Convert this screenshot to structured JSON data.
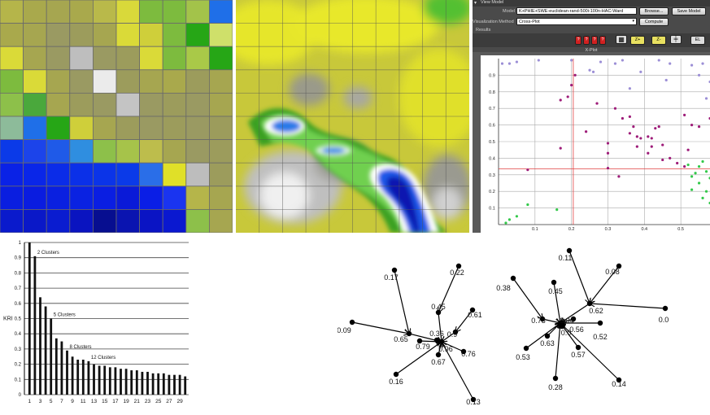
{
  "grid_colors": [
    [
      "#b5b54a",
      "#a9a94c",
      "#a6a650",
      "#a9a94c",
      "#b9b94a",
      "#d9d93a",
      "#7dbb3e",
      "#7dbb3e",
      "#a3c34a",
      "#1f6fe8"
    ],
    [
      "#a9a94c",
      "#a6a650",
      "#9a9a62",
      "#9c9c5c",
      "#a6a650",
      "#dada38",
      "#cfcf3a",
      "#7dbb3e",
      "#26a616",
      "#cfe06a"
    ],
    [
      "#dada38",
      "#a6a650",
      "#9a9a62",
      "#bebebe",
      "#9a9a62",
      "#9c9c5c",
      "#dada38",
      "#7dbb3e",
      "#a9c948",
      "#26a616"
    ],
    [
      "#7dbb3e",
      "#dada38",
      "#a6a650",
      "#9a9a62",
      "#ebebeb",
      "#9c9c5c",
      "#a6a650",
      "#a9a94c",
      "#9c9c5c",
      "#a6a650"
    ],
    [
      "#8dc04a",
      "#4aa83c",
      "#a6a650",
      "#9c9c5c",
      "#9a9a62",
      "#c4c4c4",
      "#9a9a62",
      "#9c9c5c",
      "#9a9a62",
      "#a6a650"
    ],
    [
      "#8dbb9a",
      "#1f6fe8",
      "#26a616",
      "#cfcf3a",
      "#a6a650",
      "#9c9c5c",
      "#9a9a62",
      "#9c9c5c",
      "#9a9a62",
      "#9c9c5c"
    ],
    [
      "#0b3ae8",
      "#1c44ea",
      "#1f5ae8",
      "#2f8ee0",
      "#8dc04a",
      "#a6c34a",
      "#bdbd4c",
      "#a6a650",
      "#9a9a62",
      "#9c9c5c"
    ],
    [
      "#0a22e6",
      "#0a26e8",
      "#0b2ce8",
      "#0b30e8",
      "#0b34e8",
      "#0b3ae8",
      "#2a6ee8",
      "#e0e028",
      "#bdbdbd",
      "#9c9c5c"
    ],
    [
      "#0a1ee0",
      "#0a1ce0",
      "#0a20e0",
      "#0a22e2",
      "#0a1ee2",
      "#0a1ad8",
      "#0a1ee6",
      "#1a34f0",
      "#b5b54a",
      "#a6a650"
    ],
    [
      "#0a1acc",
      "#0a18c8",
      "#0a1cd0",
      "#0a14c0",
      "#070e90",
      "#0a14b0",
      "#0a14c4",
      "#0a18d0",
      "#8dc04a",
      "#a6a650"
    ]
  ],
  "app": {
    "header": "View Model",
    "model_label": "Model",
    "model_value": "K+PHIE+SWE-euclidean-rand-500i-100n-HAC-Ward",
    "browse_label": "Browse...",
    "save_label": "Save Model",
    "method_label": "Visualization Method",
    "method_value": "Cross-Plot",
    "compute_label": "Compute",
    "results_label": "Results",
    "tool_q": "?",
    "tool_zoom_in": "Z+",
    "tool_zoom_out": "Z-",
    "tool_el": "EL",
    "plot_title": "X-Plot",
    "crossplot": {
      "x_ticks": [
        "0.1",
        "0.2",
        "0.3",
        "0.4",
        "0.5"
      ],
      "y_ticks": [
        "0.1",
        "0.2",
        "0.3",
        "0.4",
        "0.5",
        "0.6",
        "0.7",
        "0.8",
        "0.9"
      ],
      "xlim": [
        0,
        0.58
      ],
      "ylim": [
        0,
        1.0
      ],
      "crosshair": {
        "x": 0.205,
        "y": 0.335
      },
      "series": [
        {
          "color": "#9c8fd6",
          "points": [
            [
              0.01,
              0.97
            ],
            [
              0.03,
              0.97
            ],
            [
              0.05,
              0.98
            ],
            [
              0.11,
              0.99
            ],
            [
              0.2,
              0.99
            ],
            [
              0.28,
              0.98
            ],
            [
              0.32,
              0.97
            ],
            [
              0.34,
              0.99
            ],
            [
              0.44,
              0.99
            ],
            [
              0.47,
              0.97
            ],
            [
              0.53,
              0.96
            ],
            [
              0.56,
              0.97
            ],
            [
              0.26,
              0.92
            ],
            [
              0.25,
              0.93
            ],
            [
              0.39,
              0.92
            ],
            [
              0.46,
              0.87
            ],
            [
              0.55,
              0.9
            ],
            [
              0.36,
              0.82
            ],
            [
              0.57,
              0.76
            ],
            [
              0.58,
              0.86
            ]
          ]
        },
        {
          "color": "#9e1c79",
          "points": [
            [
              0.2,
              0.84
            ],
            [
              0.21,
              0.9
            ],
            [
              0.17,
              0.75
            ],
            [
              0.19,
              0.77
            ],
            [
              0.27,
              0.73
            ],
            [
              0.32,
              0.7
            ],
            [
              0.34,
              0.64
            ],
            [
              0.36,
              0.65
            ],
            [
              0.36,
              0.55
            ],
            [
              0.37,
              0.59
            ],
            [
              0.38,
              0.53
            ],
            [
              0.38,
              0.47
            ],
            [
              0.39,
              0.52
            ],
            [
              0.41,
              0.53
            ],
            [
              0.42,
              0.52
            ],
            [
              0.43,
              0.58
            ],
            [
              0.44,
              0.59
            ],
            [
              0.41,
              0.43
            ],
            [
              0.42,
              0.47
            ],
            [
              0.45,
              0.39
            ],
            [
              0.45,
              0.48
            ],
            [
              0.47,
              0.4
            ],
            [
              0.49,
              0.37
            ],
            [
              0.52,
              0.45
            ],
            [
              0.53,
              0.6
            ],
            [
              0.51,
              0.66
            ],
            [
              0.55,
              0.59
            ],
            [
              0.51,
              0.35
            ],
            [
              0.58,
              0.64
            ],
            [
              0.3,
              0.43
            ],
            [
              0.3,
              0.49
            ],
            [
              0.33,
              0.29
            ],
            [
              0.3,
              0.34
            ],
            [
              0.24,
              0.56
            ],
            [
              0.17,
              0.46
            ],
            [
              0.08,
              0.33
            ]
          ]
        },
        {
          "color": "#33c94a",
          "points": [
            [
              0.02,
              0.01
            ],
            [
              0.03,
              0.03
            ],
            [
              0.05,
              0.05
            ],
            [
              0.08,
              0.12
            ],
            [
              0.16,
              0.09
            ],
            [
              0.52,
              0.36
            ],
            [
              0.54,
              0.31
            ],
            [
              0.55,
              0.25
            ],
            [
              0.53,
              0.21
            ],
            [
              0.55,
              0.35
            ],
            [
              0.56,
              0.38
            ],
            [
              0.57,
              0.2
            ],
            [
              0.58,
              0.28
            ],
            [
              0.56,
              0.16
            ],
            [
              0.58,
              0.13
            ],
            [
              0.53,
              0.29
            ],
            [
              0.57,
              0.32
            ]
          ]
        }
      ]
    }
  },
  "chart_data": {
    "type": "bar",
    "ylabel": "KRI",
    "ylim": [
      0,
      1.0
    ],
    "y_ticks": [
      "0",
      "0.1",
      "0.2",
      "0.3",
      "0.4",
      "0.5",
      "0.6",
      "0.7",
      "0.8",
      "0.9",
      "1"
    ],
    "x_ticks": [
      "1",
      "3",
      "5",
      "7",
      "9",
      "11",
      "13",
      "15",
      "17",
      "19",
      "21",
      "23",
      "25",
      "27",
      "29"
    ],
    "values": [
      1.0,
      0.91,
      0.64,
      0.58,
      0.5,
      0.37,
      0.35,
      0.29,
      0.25,
      0.23,
      0.23,
      0.22,
      0.2,
      0.19,
      0.19,
      0.18,
      0.18,
      0.17,
      0.17,
      0.16,
      0.16,
      0.15,
      0.15,
      0.14,
      0.14,
      0.14,
      0.13,
      0.13,
      0.13,
      0.12
    ],
    "annotations": [
      {
        "text": "2 Clusters",
        "category": 2
      },
      {
        "text": "5 Clusters",
        "category": 5
      },
      {
        "text": "8 Clusters",
        "category": 8
      },
      {
        "text": "12 Clusters",
        "category": 12
      }
    ]
  },
  "graph": {
    "left": {
      "hub": "0.96",
      "sub_hubs": [
        {
          "label": "0.45",
          "children": [
            "0.22"
          ]
        },
        {
          "label": "0.9",
          "children": [
            "0.61"
          ]
        },
        {
          "label": "0.65",
          "children": [
            "0.17",
            "0.09"
          ]
        }
      ],
      "leaves": [
        "0.36",
        "0.79",
        "0.67",
        "0.76",
        "0.16",
        "0.13"
      ]
    },
    "right": {
      "hub": "0.94",
      "sub_hubs": [
        {
          "label": "0.62",
          "children": [
            "0.11",
            "0.08",
            "0.0"
          ]
        },
        {
          "label": "0.73",
          "children": [
            "0.38"
          ]
        }
      ],
      "leaves": [
        "0.45",
        "0.0",
        "0.56",
        "0.52",
        "0.63",
        "0.53",
        "0.57",
        "0.28",
        "0.14"
      ]
    }
  }
}
